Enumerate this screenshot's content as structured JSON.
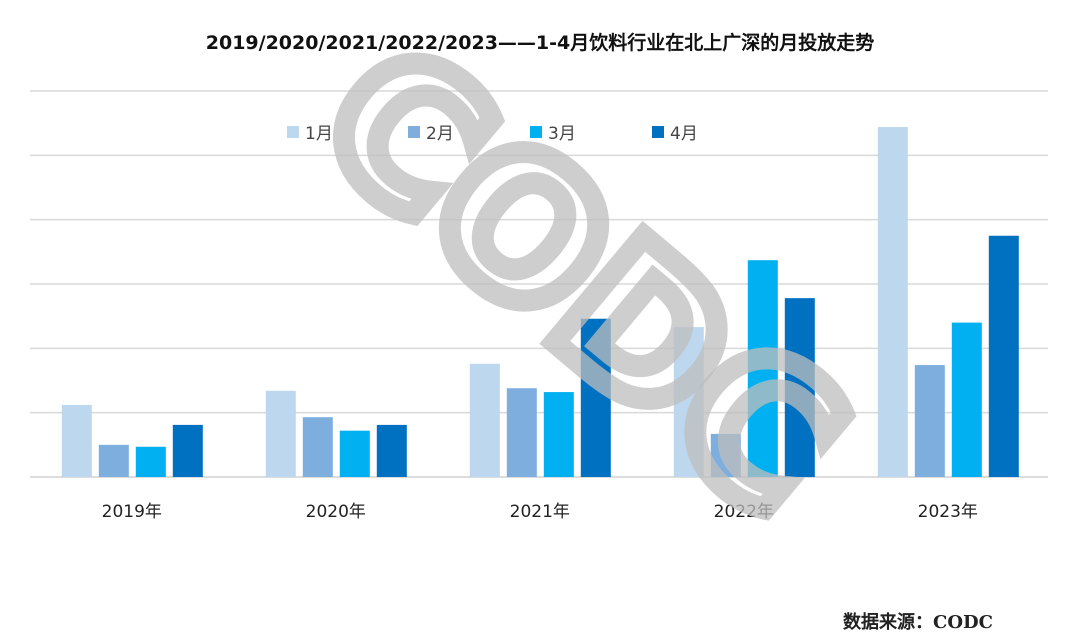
{
  "chart_data": {
    "type": "bar",
    "title": "2019/2020/2021/2022/2023——1-4月饮料行业在北上广深的月投放走势",
    "xlabel": "",
    "ylabel": "",
    "categories": [
      "2019年",
      "2020年",
      "2021年",
      "2022年",
      "2023年"
    ],
    "series": [
      {
        "name": "1月",
        "color": "#BDD7EE",
        "values": [
          1.12,
          1.34,
          1.76,
          2.33,
          5.44
        ]
      },
      {
        "name": "2月",
        "color": "#7DAEDE",
        "values": [
          0.5,
          0.93,
          1.38,
          0.67,
          1.74
        ]
      },
      {
        "name": "3月",
        "color": "#00B0F0",
        "values": [
          0.47,
          0.72,
          1.32,
          3.37,
          2.4
        ]
      },
      {
        "name": "4月",
        "color": "#0070C0",
        "values": [
          0.81,
          0.81,
          2.46,
          2.78,
          3.75
        ]
      }
    ],
    "ylim": [
      0,
      6
    ],
    "grid": true,
    "y_tick_labels_shown": false,
    "legend_placement": "top-center",
    "watermark": "CODC"
  },
  "source": "数据来源：CODC"
}
